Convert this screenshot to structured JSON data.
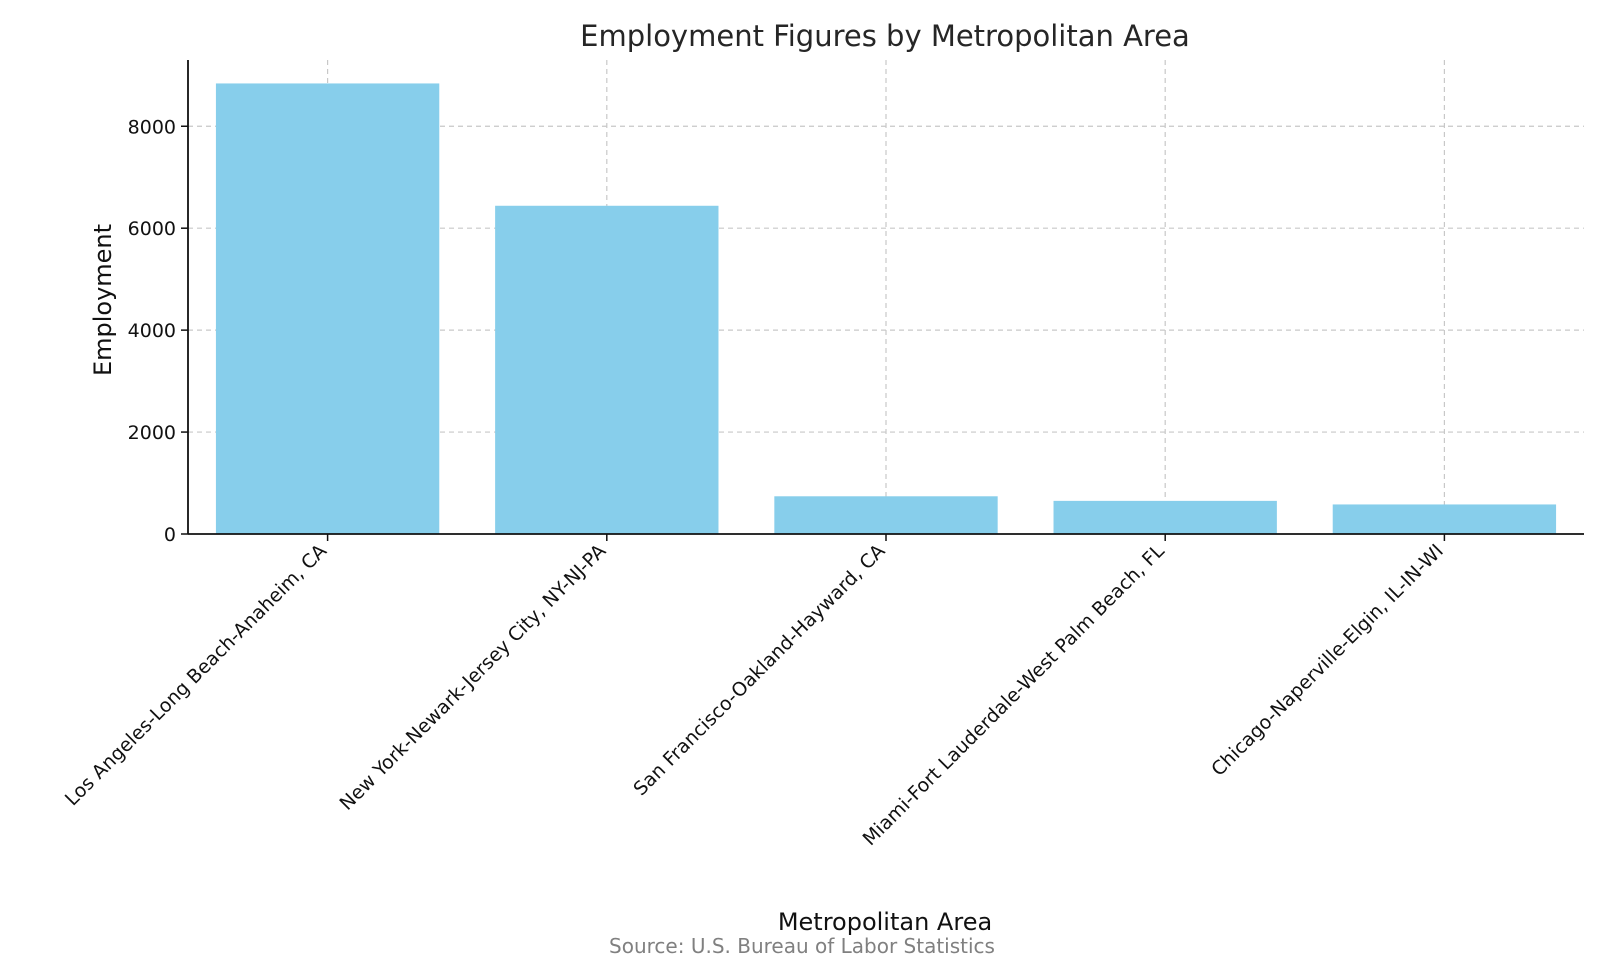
{
  "chart_data": {
    "type": "bar",
    "title": "Employment Figures by Metropolitan Area",
    "xlabel": "Metropolitan Area",
    "ylabel": "Employment",
    "categories": [
      "Los Angeles-Long Beach-Anaheim, CA",
      "New York-Newark-Jersey City, NY-NJ-PA",
      "San Francisco-Oakland-Hayward, CA",
      "Miami-Fort Lauderdale-West Palm Beach, FL",
      "Chicago-Naperville-Elgin, IL-IN-WI"
    ],
    "values": [
      8840,
      6440,
      740,
      650,
      580
    ],
    "yticks": [
      0,
      2000,
      4000,
      6000,
      8000
    ],
    "ylim": [
      0,
      9300
    ],
    "grid": true,
    "bar_color": "#87CEEB",
    "source": "Source: U.S. Bureau of Labor Statistics"
  }
}
